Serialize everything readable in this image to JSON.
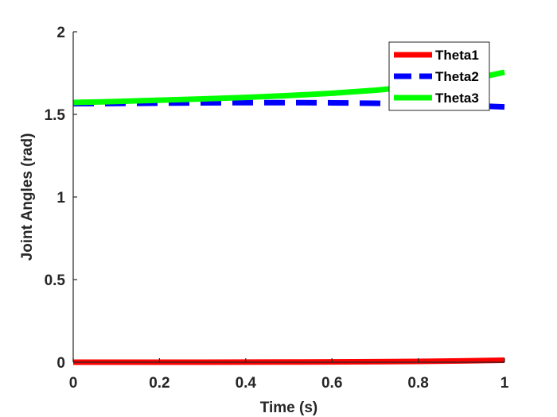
{
  "chart_data": {
    "type": "line",
    "xlabel": "Time (s)",
    "ylabel": "Joint Angles (rad)",
    "xlim": [
      0,
      1
    ],
    "ylim": [
      0,
      2
    ],
    "xticks": [
      "0",
      "0.2",
      "0.4",
      "0.6",
      "0.8",
      "1"
    ],
    "yticks": [
      "0",
      "0.5",
      "1",
      "1.5",
      "2"
    ],
    "grid": false,
    "legend_position": "top-right",
    "x": [
      0,
      0.1,
      0.2,
      0.3,
      0.4,
      0.5,
      0.6,
      0.7,
      0.8,
      0.9,
      1.0
    ],
    "series": [
      {
        "name": "Theta1",
        "color": "#ff0000",
        "style": "solid",
        "values": [
          0,
          0,
          0,
          0,
          0.0005,
          0.001,
          0.002,
          0.003,
          0.005,
          0.008,
          0.012
        ]
      },
      {
        "name": "Theta2",
        "color": "#0000ff",
        "style": "dashed",
        "values": [
          1.565,
          1.566,
          1.568,
          1.57,
          1.571,
          1.571,
          1.57,
          1.567,
          1.562,
          1.555,
          1.545
        ]
      },
      {
        "name": "Theta3",
        "color": "#00ff00",
        "style": "solid",
        "values": [
          1.572,
          1.578,
          1.586,
          1.594,
          1.603,
          1.614,
          1.628,
          1.646,
          1.67,
          1.7,
          1.755
        ]
      }
    ]
  }
}
